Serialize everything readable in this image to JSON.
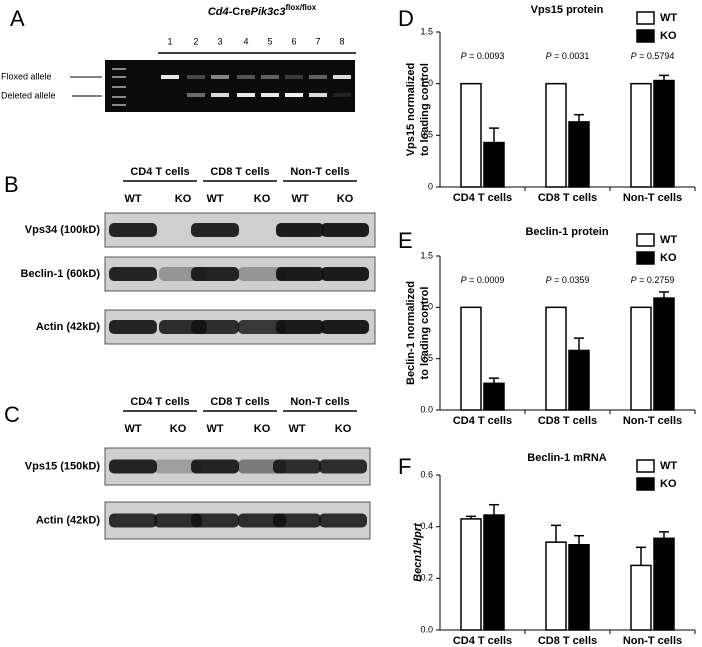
{
  "panels": [
    {
      "letter": "A",
      "title": [
        "Cd4",
        "-Cre",
        "Pik3c3",
        "flox/flox"
      ],
      "lanes": [
        "1",
        "2",
        "3",
        "4",
        "5",
        "6",
        "7",
        "8"
      ],
      "bands": [
        "Floxed allele",
        "Deleted allele"
      ]
    },
    {
      "letter": "B",
      "groups": [
        "CD4 T cells",
        "CD8 T cells",
        "Non-T cells"
      ],
      "lanes": [
        "WT",
        "KO",
        "WT",
        "KO",
        "WT",
        "KO"
      ],
      "blots": [
        "Vps34 (100kD)",
        "Beclin-1 (60kD)",
        "Actin (42kD)"
      ]
    },
    {
      "letter": "C",
      "groups": [
        "CD4 T cells",
        "CD8 T cells",
        "Non-T cells"
      ],
      "lanes": [
        "WT",
        "KO",
        "WT",
        "KO",
        "WT",
        "KO"
      ],
      "blots": [
        "Vps15 (150kD)",
        "Actin (42kD)"
      ]
    }
  ],
  "chart_data": [
    {
      "type": "bar",
      "panel": "D",
      "title": "Vps15 protein",
      "ylabel": [
        "Vps15 normalized",
        "to loading control"
      ],
      "categories": [
        "CD4 T cells",
        "CD8 T cells",
        "Non-T cells"
      ],
      "series": [
        {
          "name": "WT",
          "color": "#ffffff",
          "values": [
            1,
            1,
            1
          ]
        },
        {
          "name": "KO",
          "color": "#000000",
          "values": [
            0.43,
            0.63,
            1.03
          ],
          "errors": [
            0.14,
            0.07,
            0.05
          ]
        }
      ],
      "annotations": [
        [
          "P",
          " = 0.0093"
        ],
        [
          "P",
          " = 0.0031"
        ],
        [
          "P",
          " = 0.5794"
        ]
      ],
      "ylim": [
        0,
        1.5
      ],
      "yticks": [
        0,
        0.5,
        {
          "value": 1,
          "label": "1.0"
        },
        1.5
      ],
      "legend": "top-right"
    },
    {
      "type": "bar",
      "panel": "E",
      "title": "Beclin-1 protein",
      "ylabel": [
        "Beclin-1 normalized",
        "to loading control"
      ],
      "categories": [
        "CD4 T cells",
        "CD8 T cells",
        "Non-T cells"
      ],
      "series": [
        {
          "name": "WT",
          "color": "#ffffff",
          "values": [
            1,
            1,
            1
          ]
        },
        {
          "name": "KO",
          "color": "#000000",
          "values": [
            0.26,
            0.58,
            1.09
          ],
          "errors": [
            0.05,
            0.12,
            0.06
          ]
        }
      ],
      "annotations": [
        [
          "P",
          " = 0.0009"
        ],
        [
          "P",
          " = 0.0359"
        ],
        [
          "P",
          " = 0.2759"
        ]
      ],
      "ylim": [
        0,
        1.5
      ],
      "yticks": [
        {
          "value": 0,
          "label": "0.0"
        },
        0.5,
        {
          "value": 1,
          "label": "1.0"
        },
        1.5
      ],
      "legend": "top-right"
    },
    {
      "type": "bar",
      "panel": "F",
      "title": "Beclin-1 mRNA",
      "ylabel": [
        "Becn1/Hprt"
      ],
      "categories": [
        "CD4 T cells",
        "CD8 T cells",
        "Non-T cells"
      ],
      "series": [
        {
          "name": "WT",
          "color": "#ffffff",
          "values": [
            0.43,
            0.34,
            0.25
          ],
          "errors": [
            0.01,
            0.065,
            0.07
          ]
        },
        {
          "name": "KO",
          "color": "#000000",
          "values": [
            0.445,
            0.33,
            0.355
          ],
          "errors": [
            0.04,
            0.035,
            0.025
          ]
        }
      ],
      "ylim": [
        0,
        0.6
      ],
      "yticks": [
        {
          "value": 0,
          "label": "0.0"
        },
        0.2,
        0.4,
        0.6
      ],
      "legend": "top-right"
    }
  ]
}
